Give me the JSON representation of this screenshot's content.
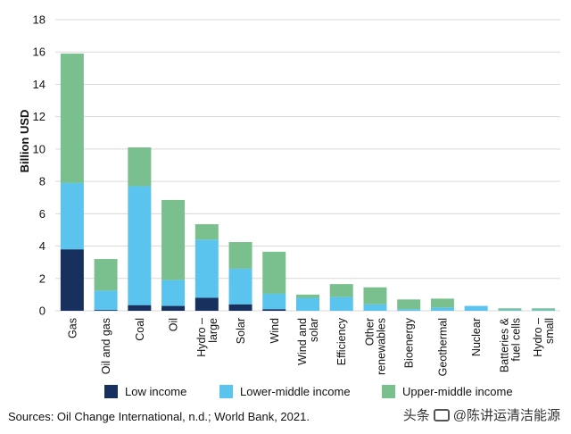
{
  "chart_data": {
    "type": "bar",
    "stacked": true,
    "ylabel": "Billion USD",
    "xlabel": "",
    "ylim": [
      0,
      18
    ],
    "yticks": [
      0,
      2,
      4,
      6,
      8,
      10,
      12,
      14,
      16,
      18
    ],
    "grid": true,
    "legend_position": "bottom",
    "categories": [
      "Gas",
      "Oil and gas",
      "Coal",
      "Oil",
      "Hydro –\nlarge",
      "Solar",
      "Wind",
      "Wind and\nsolar",
      "Efficiency",
      "Other\nrenewables",
      "Bioenergy",
      "Geothermal",
      "Nuclear",
      "Batteries &\nfuel cells",
      "Hydro –\nsmall"
    ],
    "series": [
      {
        "name": "Low income",
        "color": "#17305e",
        "values": [
          3.8,
          0.05,
          0.35,
          0.3,
          0.8,
          0.4,
          0.1,
          0.0,
          0.0,
          0.0,
          0.0,
          0.0,
          0.0,
          0.0,
          0.0
        ]
      },
      {
        "name": "Lower-middle income",
        "color": "#5bc4ee",
        "values": [
          4.1,
          1.2,
          7.35,
          1.6,
          3.6,
          2.2,
          0.95,
          0.8,
          0.85,
          0.4,
          0.1,
          0.2,
          0.3,
          0.05,
          0.05
        ]
      },
      {
        "name": "Upper-middle income",
        "color": "#7ac08e",
        "values": [
          8.0,
          1.95,
          2.4,
          4.95,
          0.95,
          1.65,
          2.6,
          0.2,
          0.8,
          1.05,
          0.6,
          0.55,
          0.0,
          0.1,
          0.1
        ]
      }
    ]
  },
  "source_text": "Sources: Oil Change International, n.d.; World Bank, 2021.",
  "watermark": {
    "prefix": "头条",
    "handle": "@陈讲运清洁能源"
  }
}
